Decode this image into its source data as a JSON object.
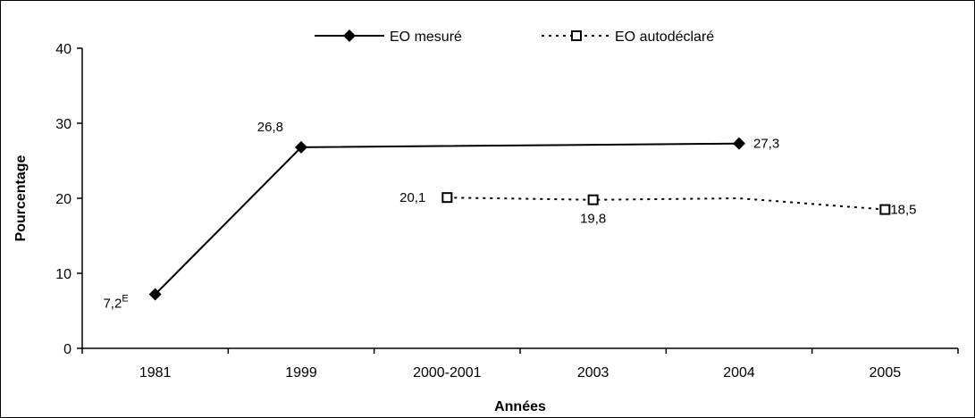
{
  "chart_data": {
    "type": "line",
    "categories": [
      "1981",
      "1999",
      "2000-2001",
      "2003",
      "2004",
      "2005"
    ],
    "xlabel": "Années",
    "ylabel": "Pourcentage",
    "ylim": [
      0,
      40
    ],
    "yticks": [
      "0",
      "10",
      "20",
      "30",
      "40"
    ],
    "grid": false,
    "legend_position": "top",
    "series": [
      {
        "name": "EO mesuré",
        "style": "solid",
        "marker": "diamond",
        "color": "#000000",
        "values": [
          7.2,
          26.8,
          null,
          null,
          27.3,
          null
        ],
        "labels": [
          "7,2",
          "26,8",
          "",
          "",
          "27,3",
          ""
        ],
        "label_superscripts": [
          "E",
          "",
          "",
          "",
          "",
          ""
        ]
      },
      {
        "name": "EO autodéclaré",
        "style": "dotted",
        "marker": "open-square",
        "color": "#000000",
        "values": [
          null,
          null,
          20.1,
          19.8,
          20.0,
          18.5
        ],
        "marker_mask": [
          false,
          false,
          true,
          true,
          false,
          true
        ],
        "labels": [
          "",
          "",
          "20,1",
          "19,8",
          "",
          "18,5"
        ]
      }
    ]
  }
}
